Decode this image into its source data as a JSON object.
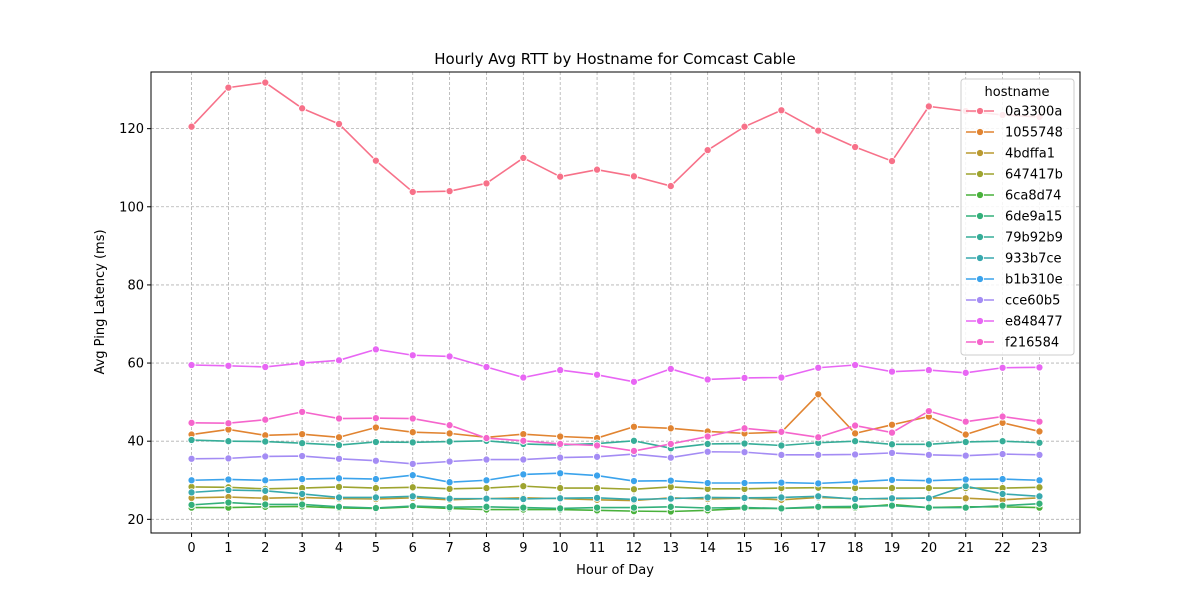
{
  "chart_data": {
    "type": "line",
    "title": "Hourly Avg RTT by Hostname for Comcast Cable",
    "xlabel": "Hour of Day",
    "ylabel": "Avg Ping Latency (ms)",
    "x": [
      0,
      1,
      2,
      3,
      4,
      5,
      6,
      7,
      8,
      9,
      10,
      11,
      12,
      13,
      14,
      15,
      16,
      17,
      18,
      19,
      20,
      21,
      22,
      23
    ],
    "x_tick_labels": [
      "0",
      "1",
      "2",
      "3",
      "4",
      "5",
      "6",
      "7",
      "8",
      "9",
      "10",
      "11",
      "12",
      "13",
      "14",
      "15",
      "16",
      "17",
      "18",
      "19",
      "20",
      "21",
      "22",
      "23"
    ],
    "ylim": [
      16.5,
      134.5
    ],
    "y_ticks": [
      20,
      40,
      60,
      80,
      100,
      120
    ],
    "y_tick_labels": [
      "20",
      "40",
      "60",
      "80",
      "100",
      "120"
    ],
    "grid": true,
    "legend": {
      "title": "hostname",
      "placement": "top-right"
    },
    "series": [
      {
        "name": "0a3300a",
        "color": "#f77189",
        "values": [
          120.5,
          130.5,
          131.8,
          125.2,
          121.2,
          111.8,
          103.8,
          104.0,
          106.0,
          112.5,
          107.7,
          109.5,
          107.8,
          105.3,
          114.5,
          120.5,
          124.7,
          119.5,
          115.3,
          111.7,
          125.7,
          124.5,
          123.5,
          123.0
        ]
      },
      {
        "name": "1055748",
        "color": "#e18431",
        "values": [
          41.7,
          43.0,
          41.5,
          41.8,
          41.0,
          43.5,
          42.3,
          42.0,
          41.0,
          41.8,
          41.2,
          40.8,
          43.7,
          43.3,
          42.5,
          42.0,
          42.3,
          52.0,
          42.0,
          44.2,
          46.3,
          41.7,
          44.7,
          42.5
        ]
      },
      {
        "name": "4bdffa1",
        "color": "#ba9a31",
        "values": [
          25.5,
          25.7,
          25.4,
          25.6,
          25.3,
          25.2,
          25.5,
          25.0,
          25.3,
          25.5,
          25.3,
          25.0,
          24.8,
          25.5,
          25.2,
          25.4,
          25.0,
          25.6,
          25.3,
          25.2,
          25.5,
          25.4,
          25.0,
          25.5
        ]
      },
      {
        "name": "647417b",
        "color": "#9ea42f",
        "values": [
          28.3,
          28.2,
          27.8,
          28.0,
          28.3,
          28.0,
          28.2,
          27.8,
          28.0,
          28.5,
          28.0,
          28.0,
          27.7,
          28.3,
          27.8,
          27.8,
          28.0,
          28.1,
          28.0,
          28.0,
          28.0,
          28.0,
          28.0,
          28.2
        ]
      },
      {
        "name": "6ca8d74",
        "color": "#49b13b",
        "values": [
          23.0,
          23.0,
          23.2,
          23.3,
          22.9,
          22.8,
          23.2,
          22.8,
          22.5,
          22.5,
          22.5,
          22.3,
          22.1,
          22.0,
          22.3,
          22.8,
          22.8,
          23.0,
          23.0,
          23.8,
          23.0,
          23.2,
          23.2,
          23.0
        ]
      },
      {
        "name": "6de9a15",
        "color": "#33b07a",
        "values": [
          23.7,
          24.3,
          23.8,
          23.8,
          23.2,
          22.9,
          23.4,
          23.1,
          23.2,
          23.0,
          22.8,
          23.0,
          23.0,
          23.2,
          22.9,
          23.0,
          22.8,
          23.2,
          23.3,
          23.5,
          23.0,
          23.0,
          23.5,
          24.0
        ]
      },
      {
        "name": "79b92b9",
        "color": "#36ad98",
        "values": [
          40.3,
          40.0,
          39.9,
          39.5,
          39.0,
          39.8,
          39.7,
          39.9,
          40.1,
          39.3,
          39.0,
          39.4,
          40.1,
          38.2,
          39.3,
          39.4,
          38.9,
          39.6,
          40.0,
          39.2,
          39.2,
          39.8,
          40.0,
          39.6
        ]
      },
      {
        "name": "933b7ce",
        "color": "#38a9ae",
        "values": [
          26.9,
          27.5,
          27.3,
          26.5,
          25.6,
          25.6,
          25.9,
          25.3,
          25.3,
          25.2,
          25.4,
          25.5,
          25.1,
          25.3,
          25.6,
          25.5,
          25.6,
          25.9,
          25.2,
          25.4,
          25.4,
          28.5,
          26.5,
          25.9
        ]
      },
      {
        "name": "b1b310e",
        "color": "#3ba3ec",
        "values": [
          30.0,
          30.2,
          30.0,
          30.3,
          30.5,
          30.3,
          31.3,
          29.5,
          30.0,
          31.5,
          31.8,
          31.2,
          29.8,
          29.9,
          29.3,
          29.3,
          29.4,
          29.2,
          29.6,
          30.1,
          29.9,
          30.2,
          30.3,
          30.0
        ]
      },
      {
        "name": "cce60b5",
        "color": "#a48cf4",
        "values": [
          35.5,
          35.6,
          36.1,
          36.2,
          35.5,
          35.0,
          34.2,
          34.8,
          35.3,
          35.3,
          35.8,
          36.0,
          36.7,
          35.8,
          37.3,
          37.2,
          36.5,
          36.5,
          36.6,
          37.0,
          36.5,
          36.3,
          36.7,
          36.5
        ]
      },
      {
        "name": "e848477",
        "color": "#e866f4",
        "values": [
          59.5,
          59.3,
          59.0,
          60.0,
          60.7,
          63.5,
          62.0,
          61.7,
          59.0,
          56.3,
          58.2,
          57.0,
          55.2,
          58.5,
          55.8,
          56.2,
          56.3,
          58.8,
          59.5,
          57.8,
          58.2,
          57.5,
          58.8,
          58.9
        ]
      },
      {
        "name": "f216584",
        "color": "#f565cc",
        "values": [
          44.7,
          44.6,
          45.5,
          47.5,
          45.8,
          45.9,
          45.8,
          44.1,
          40.8,
          40.1,
          39.3,
          38.9,
          37.5,
          39.3,
          41.2,
          43.3,
          42.4,
          41.0,
          44.0,
          42.2,
          47.7,
          45.0,
          46.3,
          45.0
        ]
      }
    ]
  }
}
